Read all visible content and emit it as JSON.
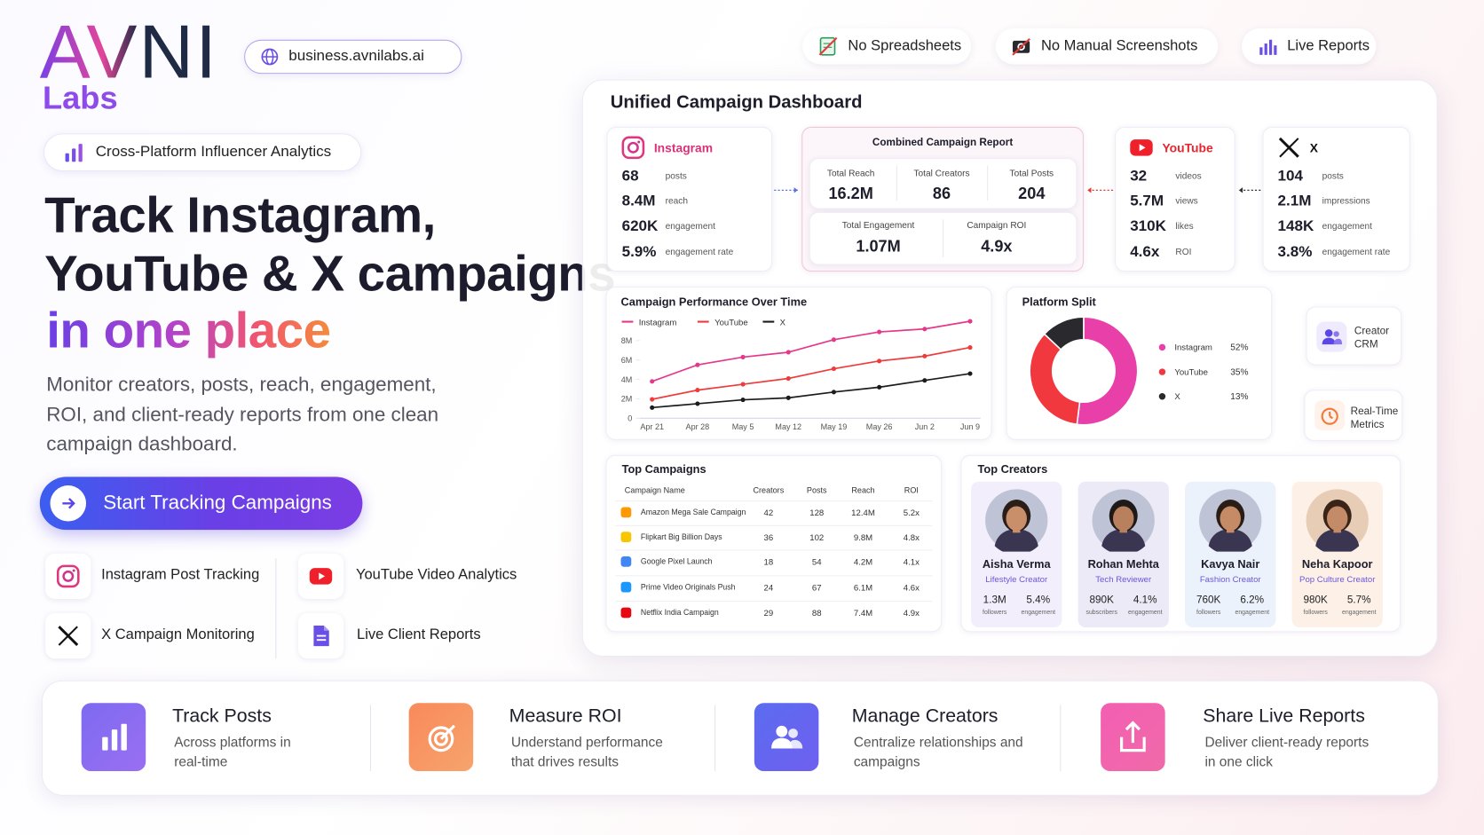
{
  "brand": {
    "logo_top": "AVNI",
    "logo_bottom": "Labs",
    "url": "business.avnilabs.ai"
  },
  "top_badges": [
    "No Spreadsheets",
    "No Manual Screenshots",
    "Live Reports"
  ],
  "hero": {
    "tag": "Cross-Platform Influencer Analytics",
    "title_line1": "Track Instagram,",
    "title_line2": "YouTube & X campaigns",
    "title_line3": "in one place",
    "description": "Monitor creators, posts, reach, engagement, ROI, and client-ready reports from one clean campaign dashboard.",
    "cta": "Start Tracking Campaigns"
  },
  "features": [
    "Instagram Post Tracking",
    "YouTube Video Analytics",
    "X Campaign Monitoring",
    "Live Client Reports"
  ],
  "dashboard": {
    "title": "Unified Campaign Dashboard",
    "platforms": [
      {
        "name": "Instagram",
        "stats": [
          {
            "value": "68",
            "label": "posts"
          },
          {
            "value": "8.4M",
            "label": "reach"
          },
          {
            "value": "620K",
            "label": "engagement"
          },
          {
            "value": "5.9%",
            "label": "engagement rate"
          }
        ]
      },
      {
        "name": "YouTube",
        "stats": [
          {
            "value": "32",
            "label": "videos"
          },
          {
            "value": "5.7M",
            "label": "views"
          },
          {
            "value": "310K",
            "label": "likes"
          },
          {
            "value": "4.6x",
            "label": "ROI"
          }
        ]
      },
      {
        "name": "X",
        "stats": [
          {
            "value": "104",
            "label": "posts"
          },
          {
            "value": "2.1M",
            "label": "impressions"
          },
          {
            "value": "148K",
            "label": "engagement"
          },
          {
            "value": "3.8%",
            "label": "engagement rate"
          }
        ]
      }
    ],
    "combined": {
      "title": "Combined Campaign Report",
      "stats": [
        {
          "label": "Total Reach",
          "value": "16.2M"
        },
        {
          "label": "Total Creators",
          "value": "86"
        },
        {
          "label": "Total Posts",
          "value": "204"
        },
        {
          "label": "Total Engagement",
          "value": "1.07M"
        },
        {
          "label": "Campaign ROI",
          "value": "4.9x"
        }
      ]
    },
    "line_chart": {
      "type": "line",
      "title": "Campaign Performance Over Time",
      "x": [
        "Apr 21",
        "Apr 28",
        "May 5",
        "May 12",
        "May 19",
        "May 26",
        "Jun 2",
        "Jun 9"
      ],
      "ylim": [
        0,
        10000000
      ],
      "yticks": [
        0,
        {
          "value": 2000000,
          "label": "2M"
        },
        {
          "value": 4000000,
          "label": "4M"
        },
        {
          "value": 6000000,
          "label": "6M"
        },
        {
          "value": 8000000,
          "label": "8M"
        }
      ],
      "grid": false,
      "series": [
        {
          "name": "Instagram",
          "color": "#e5388a",
          "values": [
            3800000,
            5500000,
            6300000,
            6800000,
            8100000,
            8900000,
            9200000,
            10000000
          ]
        },
        {
          "name": "YouTube",
          "color": "#ef3b3b",
          "values": [
            1950000,
            2900000,
            3500000,
            4100000,
            5100000,
            5900000,
            6400000,
            7300000
          ]
        },
        {
          "name": "X",
          "color": "#1c1c1c",
          "values": [
            1100000,
            1500000,
            1900000,
            2100000,
            2700000,
            3200000,
            3900000,
            4600000
          ]
        }
      ]
    },
    "platform_split": {
      "type": "pie",
      "title": "Platform Split",
      "categories": [
        "Instagram",
        "YouTube",
        "X"
      ],
      "values": [
        52,
        35,
        13
      ],
      "value_labels": [
        "52%",
        "35%",
        "13%"
      ],
      "colors": [
        "#e93fa8",
        "#f2383f",
        "#2a2a2e"
      ]
    },
    "side_buttons": [
      "Creator CRM",
      "Real-Time Metrics"
    ],
    "top_campaigns": {
      "title": "Top Campaigns",
      "columns": [
        "Campaign Name",
        "Creators",
        "Posts",
        "Reach",
        "ROI"
      ],
      "rows": [
        [
          "Amazon Mega Sale Campaign",
          "42",
          "128",
          "12.4M",
          "5.2x"
        ],
        [
          "Flipkart Big Billion Days",
          "36",
          "102",
          "9.8M",
          "4.8x"
        ],
        [
          "Google Pixel Launch",
          "18",
          "54",
          "4.2M",
          "4.1x"
        ],
        [
          "Prime Video Originals Push",
          "24",
          "67",
          "6.1M",
          "4.6x"
        ],
        [
          "Netflix India Campaign",
          "29",
          "88",
          "7.4M",
          "4.9x"
        ]
      ]
    },
    "top_creators": {
      "title": "Top Creators",
      "creators": [
        {
          "name": "Aisha Verma",
          "role": "Lifestyle Creator",
          "stats": [
            {
              "value": "1.3M",
              "label": "followers"
            },
            {
              "value": "5.4%",
              "label": "engagement"
            }
          ]
        },
        {
          "name": "Rohan Mehta",
          "role": "Tech Reviewer",
          "stats": [
            {
              "value": "890K",
              "label": "subscribers"
            },
            {
              "value": "4.1%",
              "label": "engagement"
            }
          ]
        },
        {
          "name": "Kavya Nair",
          "role": "Fashion Creator",
          "stats": [
            {
              "value": "760K",
              "label": "followers"
            },
            {
              "value": "6.2%",
              "label": "engagement"
            }
          ]
        },
        {
          "name": "Neha Kapoor",
          "role": "Pop Culture Creator",
          "stats": [
            {
              "value": "980K",
              "label": "followers"
            },
            {
              "value": "5.7%",
              "label": "engagement"
            }
          ]
        }
      ]
    }
  },
  "benefits": [
    {
      "title": "Track Posts",
      "description": "Across platforms in real-time"
    },
    {
      "title": "Measure ROI",
      "description": "Understand performance that drives results"
    },
    {
      "title": "Manage Creators",
      "description": "Centralize relationships and campaigns"
    },
    {
      "title": "Share Live Reports",
      "description": "Deliver client-ready reports in one click"
    }
  ]
}
